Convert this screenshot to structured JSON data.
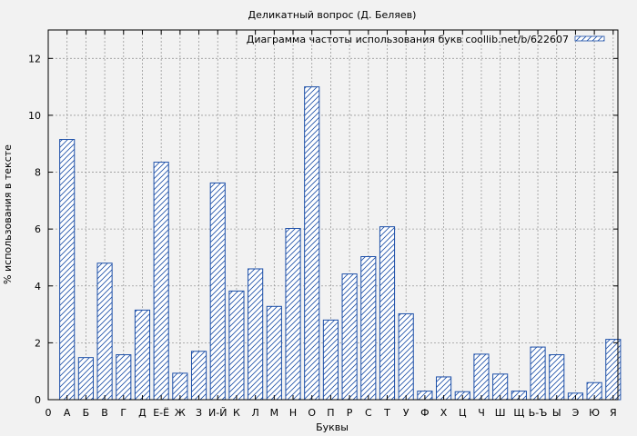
{
  "chart_data": {
    "type": "bar",
    "title": "Деликатный вопрос (Д. Беляев)",
    "xlabel": "Буквы",
    "ylabel": "% использования в тексте",
    "ylim": [
      0,
      13
    ],
    "yticks": [
      0,
      2,
      4,
      6,
      8,
      10,
      12
    ],
    "grid": true,
    "legend_position": "top-right",
    "x_first_tick": "0",
    "categories": [
      "А",
      "Б",
      "В",
      "Г",
      "Д",
      "Е-Ё",
      "Ж",
      "З",
      "И-Й",
      "К",
      "Л",
      "М",
      "Н",
      "О",
      "П",
      "Р",
      "С",
      "Т",
      "У",
      "Ф",
      "Х",
      "Ц",
      "Ч",
      "Ш",
      "Щ",
      "Ь-Ъ",
      "Ы",
      "Э",
      "Ю",
      "Я"
    ],
    "series": [
      {
        "name": "Диаграмма частоты использования букв coollib.net/b/622607",
        "color": "#1c4fa8",
        "values": [
          9.15,
          1.48,
          4.8,
          1.58,
          3.15,
          8.35,
          0.93,
          1.7,
          7.62,
          3.82,
          4.6,
          3.28,
          6.02,
          11.0,
          2.8,
          4.42,
          5.03,
          6.08,
          3.02,
          0.3,
          0.8,
          0.28,
          1.6,
          0.9,
          0.3,
          1.85,
          1.58,
          0.23,
          0.6,
          2.12
        ]
      }
    ]
  }
}
